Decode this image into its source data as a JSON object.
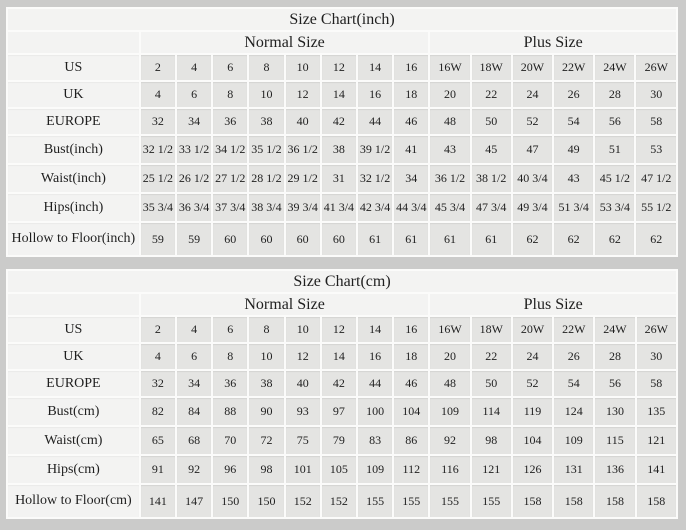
{
  "colors": {
    "page_background": "#cbcbca",
    "grid_line": "#fbfbfa",
    "header_cell_background": "#f3f3f2",
    "data_cell_background": "#e4e4e2",
    "text": "#1f1f1f"
  },
  "chart_data": [
    {
      "type": "table",
      "title": "Size Chart(inch)",
      "group_headers": [
        "Normal Size",
        "Plus Size"
      ],
      "normal_size_count": 8,
      "plus_size_count": 6,
      "rows": [
        {
          "label": "US",
          "values": [
            "2",
            "4",
            "6",
            "8",
            "10",
            "12",
            "14",
            "16",
            "16W",
            "18W",
            "20W",
            "22W",
            "24W",
            "26W"
          ]
        },
        {
          "label": "UK",
          "values": [
            "4",
            "6",
            "8",
            "10",
            "12",
            "14",
            "16",
            "18",
            "20",
            "22",
            "24",
            "26",
            "28",
            "30"
          ]
        },
        {
          "label": "EUROPE",
          "values": [
            "32",
            "34",
            "36",
            "38",
            "40",
            "42",
            "44",
            "46",
            "48",
            "50",
            "52",
            "54",
            "56",
            "58"
          ]
        },
        {
          "label": "Bust(inch)",
          "values": [
            "32 1/2",
            "33 1/2",
            "34 1/2",
            "35 1/2",
            "36 1/2",
            "38",
            "39 1/2",
            "41",
            "43",
            "45",
            "47",
            "49",
            "51",
            "53"
          ]
        },
        {
          "label": "Waist(inch)",
          "values": [
            "25 1/2",
            "26 1/2",
            "27 1/2",
            "28 1/2",
            "29 1/2",
            "31",
            "32 1/2",
            "34",
            "36 1/2",
            "38 1/2",
            "40 3/4",
            "43",
            "45 1/2",
            "47 1/2"
          ]
        },
        {
          "label": "Hips(inch)",
          "values": [
            "35 3/4",
            "36 3/4",
            "37 3/4",
            "38 3/4",
            "39 3/4",
            "41 3/4",
            "42 3/4",
            "44 3/4",
            "45 3/4",
            "47 3/4",
            "49 3/4",
            "51 3/4",
            "53 3/4",
            "55 1/2"
          ]
        },
        {
          "label": "Hollow to Floor(inch)",
          "values": [
            "59",
            "59",
            "60",
            "60",
            "60",
            "60",
            "61",
            "61",
            "61",
            "61",
            "62",
            "62",
            "62",
            "62"
          ]
        }
      ]
    },
    {
      "type": "table",
      "title": "Size Chart(cm)",
      "group_headers": [
        "Normal Size",
        "Plus Size"
      ],
      "normal_size_count": 8,
      "plus_size_count": 6,
      "rows": [
        {
          "label": "US",
          "values": [
            "2",
            "4",
            "6",
            "8",
            "10",
            "12",
            "14",
            "16",
            "16W",
            "18W",
            "20W",
            "22W",
            "24W",
            "26W"
          ]
        },
        {
          "label": "UK",
          "values": [
            "4",
            "6",
            "8",
            "10",
            "12",
            "14",
            "16",
            "18",
            "20",
            "22",
            "24",
            "26",
            "28",
            "30"
          ]
        },
        {
          "label": "EUROPE",
          "values": [
            "32",
            "34",
            "36",
            "38",
            "40",
            "42",
            "44",
            "46",
            "48",
            "50",
            "52",
            "54",
            "56",
            "58"
          ]
        },
        {
          "label": "Bust(cm)",
          "values": [
            "82",
            "84",
            "88",
            "90",
            "93",
            "97",
            "100",
            "104",
            "109",
            "114",
            "119",
            "124",
            "130",
            "135"
          ]
        },
        {
          "label": "Waist(cm)",
          "values": [
            "65",
            "68",
            "70",
            "72",
            "75",
            "79",
            "83",
            "86",
            "92",
            "98",
            "104",
            "109",
            "115",
            "121"
          ]
        },
        {
          "label": "Hips(cm)",
          "values": [
            "91",
            "92",
            "96",
            "98",
            "101",
            "105",
            "109",
            "112",
            "116",
            "121",
            "126",
            "131",
            "136",
            "141"
          ]
        },
        {
          "label": "Hollow to Floor(cm)",
          "values": [
            "141",
            "147",
            "150",
            "150",
            "152",
            "152",
            "155",
            "155",
            "155",
            "155",
            "158",
            "158",
            "158",
            "158"
          ]
        }
      ]
    }
  ]
}
